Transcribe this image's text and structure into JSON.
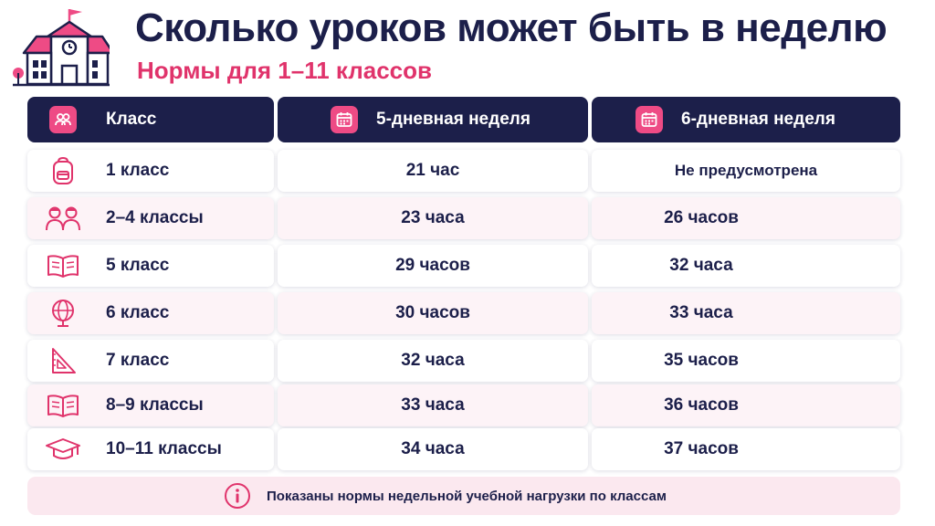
{
  "header": {
    "title": "Сколько уроков может быть в неделю",
    "subtitle": "Нормы для 1–11 классов",
    "logo_icon": "school-building-icon"
  },
  "colors": {
    "navy": "#1c1f4a",
    "pink": "#e0336b",
    "icon_pink": "#ee4b85",
    "row_alt": "#fdf3f7",
    "note_bg": "#fbe8ef"
  },
  "table": {
    "columns": [
      {
        "label": "Класс",
        "icon": "users-icon"
      },
      {
        "label": "5-дневная неделя",
        "icon": "calendar-icon"
      },
      {
        "label": "6-дневная неделя",
        "icon": "calendar-icon"
      }
    ],
    "rows": [
      {
        "grade": "1 класс",
        "five_day": "21 час",
        "six_day": "Не предусмотрена",
        "icon": "backpack-icon"
      },
      {
        "grade": "2–4 классы",
        "five_day": "23 часа",
        "six_day": "26 часов",
        "icon": "students-icon"
      },
      {
        "grade": "5 класс",
        "five_day": "29 часов",
        "six_day": "32 часа",
        "icon": "open-book-icon"
      },
      {
        "grade": "6 класс",
        "five_day": "30 часов",
        "six_day": "33 часа",
        "icon": "globe-icon"
      },
      {
        "grade": "7 класс",
        "five_day": "32 часа",
        "six_day": "35 часов",
        "icon": "set-square-icon"
      },
      {
        "grade": "8–9 классы",
        "five_day": "33 часа",
        "six_day": "36 часов",
        "icon": "open-book-icon"
      },
      {
        "grade": "10–11 классы",
        "five_day": "34 часа",
        "six_day": "37 часов",
        "icon": "graduation-cap-icon"
      }
    ]
  },
  "note": {
    "text": "Показаны нормы недельной учебной нагрузки по классам",
    "icon": "info-icon"
  }
}
